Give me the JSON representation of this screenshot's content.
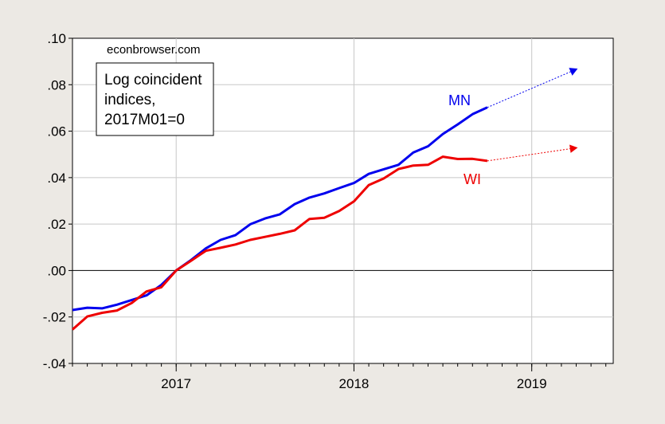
{
  "chart_data": {
    "type": "line",
    "annotation": "econbrowser.com",
    "box_text": [
      "Log coincident",
      "indices,",
      "2017M01=0"
    ],
    "x_tick_labels": [
      "2017",
      "2018",
      "2019"
    ],
    "x_tick_values": [
      2017.0,
      2018.0,
      2019.0
    ],
    "xlim": [
      2016.4167,
      2019.4583
    ],
    "ylim": [
      -0.04,
      0.1
    ],
    "y_ticks": [
      -0.04,
      -0.02,
      0.0,
      0.02,
      0.04,
      0.06,
      0.08,
      0.1
    ],
    "y_tick_labels": [
      "-.04",
      "-.02",
      ".00",
      ".02",
      ".04",
      ".06",
      ".08",
      ".10"
    ],
    "grid": true,
    "zero_line": true,
    "series": [
      {
        "name": "MN",
        "color": "#0000ee",
        "x": [
          2016.4167,
          2016.5,
          2016.5833,
          2016.6667,
          2016.75,
          2016.8333,
          2016.9167,
          2017.0,
          2017.0833,
          2017.1667,
          2017.25,
          2017.3333,
          2017.4167,
          2017.5,
          2017.5833,
          2017.6667,
          2017.75,
          2017.8333,
          2017.9167,
          2018.0,
          2018.0833,
          2018.1667,
          2018.25,
          2018.3333,
          2018.4167,
          2018.5,
          2018.5833,
          2018.6667,
          2018.75
        ],
        "values": [
          -0.017,
          -0.016,
          -0.0163,
          -0.0147,
          -0.0127,
          -0.0107,
          -0.0062,
          0.0,
          0.0045,
          0.0095,
          0.0132,
          0.0152,
          0.0199,
          0.0224,
          0.0242,
          0.0286,
          0.0314,
          0.0332,
          0.0355,
          0.0377,
          0.0416,
          0.0436,
          0.0455,
          0.0508,
          0.0535,
          0.0588,
          0.0629,
          0.0673,
          0.0702
        ],
        "projection": {
          "x": [
            2018.75,
            2019.2583
          ],
          "values": [
            0.0702,
            0.0869
          ]
        }
      },
      {
        "name": "WI",
        "color": "#ee0000",
        "x": [
          2016.4167,
          2016.5,
          2016.5833,
          2016.6667,
          2016.75,
          2016.8333,
          2016.9167,
          2017.0,
          2017.0833,
          2017.1667,
          2017.25,
          2017.3333,
          2017.4167,
          2017.5,
          2017.5833,
          2017.6667,
          2017.75,
          2017.8333,
          2017.9167,
          2018.0,
          2018.0833,
          2018.1667,
          2018.25,
          2018.3333,
          2018.4167,
          2018.5,
          2018.5833,
          2018.6667,
          2018.75
        ],
        "values": [
          -0.0254,
          -0.0198,
          -0.0182,
          -0.0172,
          -0.014,
          -0.009,
          -0.0072,
          0.0,
          0.0042,
          0.0085,
          0.0098,
          0.0112,
          0.0132,
          0.0145,
          0.0158,
          0.0173,
          0.0222,
          0.0227,
          0.0256,
          0.0298,
          0.0368,
          0.0396,
          0.0437,
          0.0452,
          0.0455,
          0.049,
          0.048,
          0.0481,
          0.0472
        ],
        "projection": {
          "x": [
            2018.75,
            2019.2583
          ],
          "values": [
            0.0472,
            0.0529
          ]
        }
      }
    ]
  }
}
